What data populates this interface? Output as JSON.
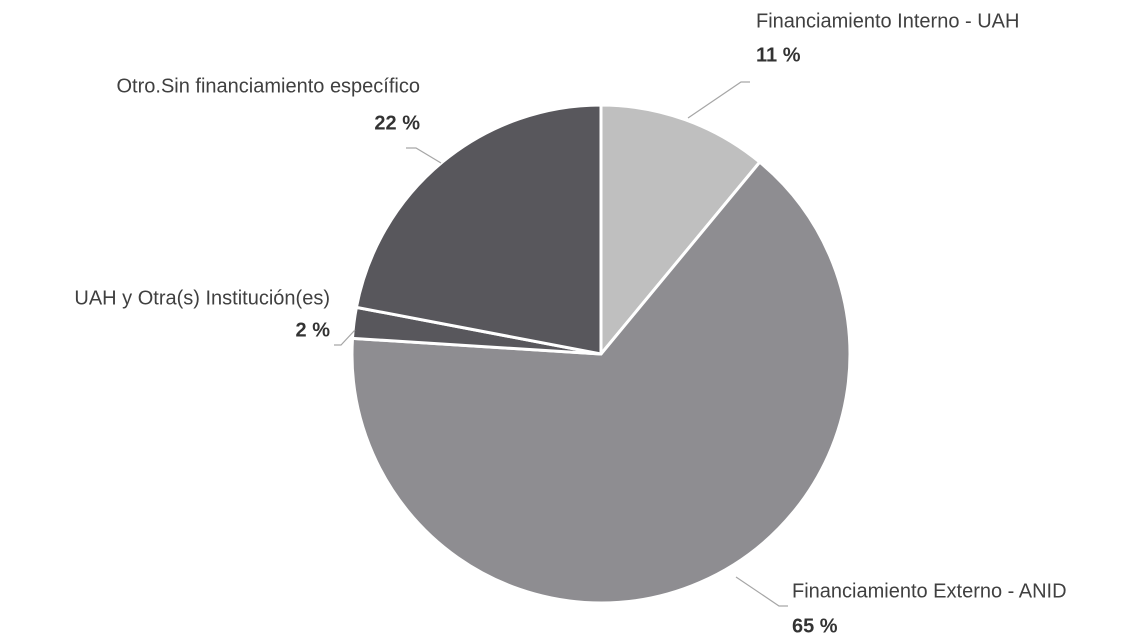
{
  "chart_data": {
    "type": "pie",
    "categories": [
      "Financiamiento Interno - UAH",
      "Financiamiento Externo - ANID",
      "UAH y Otra(s) Institución(es)",
      "Otro.Sin financiamiento específico"
    ],
    "values": [
      11,
      65,
      2,
      22
    ],
    "value_labels": [
      "11 %",
      "65 %",
      "2 %",
      "22 %"
    ],
    "colors": [
      "#bfbfbf",
      "#8e8d91",
      "#58575c",
      "#58575c"
    ]
  }
}
